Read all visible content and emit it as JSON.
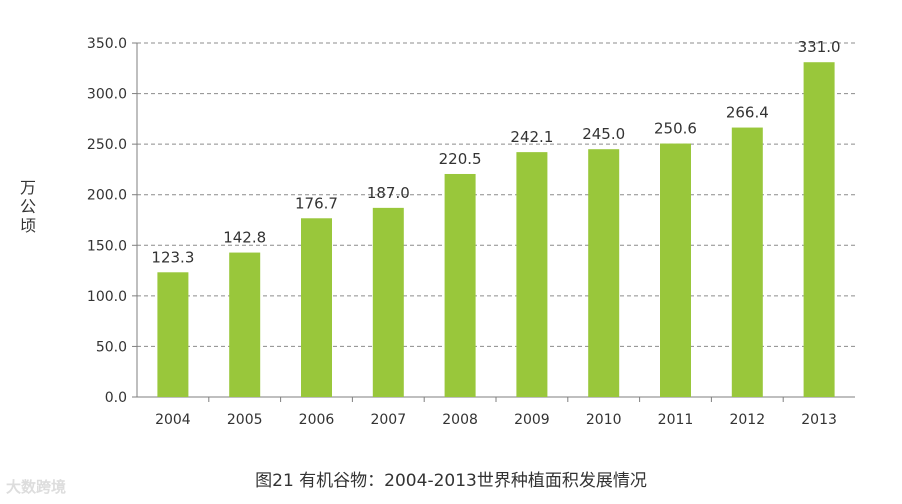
{
  "chart_data": {
    "type": "bar",
    "categories": [
      "2004",
      "2005",
      "2006",
      "2007",
      "2008",
      "2009",
      "2010",
      "2011",
      "2012",
      "2013"
    ],
    "values": [
      123.3,
      142.8,
      176.7,
      187.0,
      220.5,
      242.1,
      245.0,
      250.6,
      266.4,
      331.0
    ],
    "value_labels": [
      "123.3",
      "142.8",
      "176.7",
      "187.0",
      "220.5",
      "242.1",
      "245.0",
      "250.6",
      "266.4",
      "331.0"
    ],
    "ylabel": "万公顷",
    "yticks": [
      "0.0",
      "50.0",
      "100.0",
      "150.0",
      "200.0",
      "250.0",
      "300.0",
      "350.0"
    ],
    "ylim": [
      0,
      350
    ],
    "grid": true,
    "bar_color": "#99c73b",
    "title": "图21 有机谷物：2004-2013世界种植面积发展情况"
  },
  "watermark": "大数跨境"
}
